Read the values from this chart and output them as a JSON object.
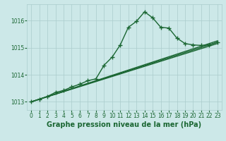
{
  "background_color": "#cce8e8",
  "grid_color": "#aacccc",
  "line_color": "#1a6632",
  "marker_color": "#1a6632",
  "title": "Graphe pression niveau de la mer (hPa)",
  "xlim": [
    -0.5,
    23.5
  ],
  "ylim": [
    1012.7,
    1016.6
  ],
  "yticks": [
    1013,
    1014,
    1015,
    1016
  ],
  "xticks": [
    0,
    1,
    2,
    3,
    4,
    5,
    6,
    7,
    8,
    9,
    10,
    11,
    12,
    13,
    14,
    15,
    16,
    17,
    18,
    19,
    20,
    21,
    22,
    23
  ],
  "series_main": {
    "x": [
      0,
      1,
      2,
      3,
      4,
      5,
      6,
      7,
      8,
      9,
      10,
      11,
      12,
      13,
      14,
      15,
      16,
      17,
      18,
      19,
      20,
      21,
      22,
      23
    ],
    "y": [
      1013.0,
      1013.1,
      1013.2,
      1013.35,
      1013.42,
      1013.55,
      1013.65,
      1013.78,
      1013.85,
      1014.35,
      1014.65,
      1015.1,
      1015.75,
      1015.97,
      1016.32,
      1016.1,
      1015.75,
      1015.72,
      1015.35,
      1015.15,
      1015.1,
      1015.08,
      1015.1,
      1015.2
    ]
  },
  "series_linear": [
    {
      "x": [
        0,
        23
      ],
      "y": [
        1013.0,
        1015.2
      ]
    },
    {
      "x": [
        0,
        23
      ],
      "y": [
        1013.0,
        1015.15
      ]
    },
    {
      "x": [
        0,
        23
      ],
      "y": [
        1013.0,
        1015.25
      ]
    }
  ],
  "marker": "+",
  "markersize": 4,
  "linewidth": 1.0,
  "title_fontsize": 7,
  "tick_fontsize": 5.5
}
